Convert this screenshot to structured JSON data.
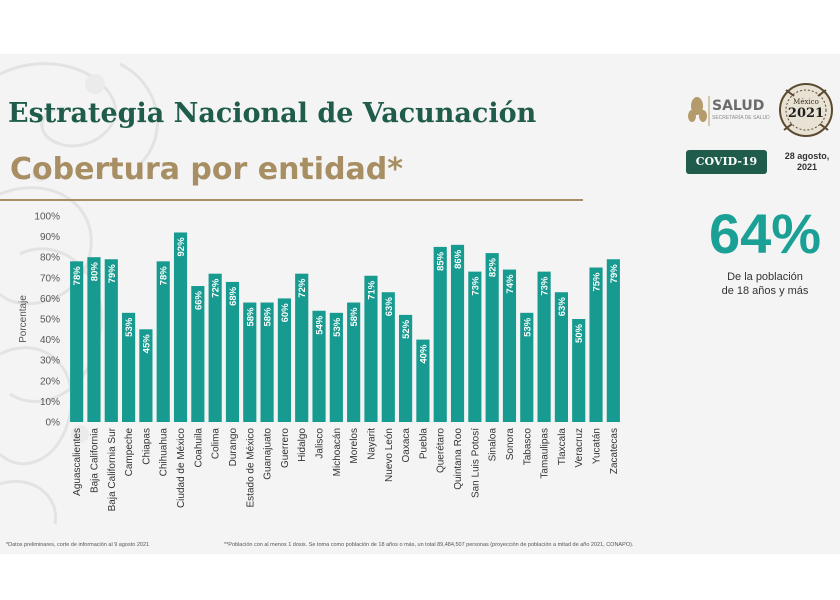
{
  "header": {
    "title": "Estrategia Nacional de Vacunación",
    "subtitle": "Cobertura por entidad*"
  },
  "branding": {
    "salud_name": "SALUD",
    "salud_sub": "SECRETARÍA DE SALUD",
    "seal_year": "2021",
    "seal_country": "México",
    "covid_badge": "COVID-19",
    "date_line1": "28 agosto,",
    "date_line2": "2021"
  },
  "summary": {
    "value": "64%",
    "caption_line1": "De la población",
    "caption_line2": "de 18 años y más"
  },
  "footnotes": {
    "left": "*Datos preliminares, corte de información al 9 agosto 2021",
    "right": "**Población con al menos 1 dosis. Se toma como población de 18 años o más, un total 89,484,507 personas (proyección de población a mitad de año 2021, CONAPO)."
  },
  "colors": {
    "bar": "#179a8f",
    "title": "#1f5c4b",
    "accent": "#a88e63",
    "big_value": "#1aa095"
  },
  "chart_data": {
    "type": "bar",
    "title": "",
    "xlabel": "",
    "ylabel": "Porcentaje",
    "ylim": [
      0,
      100
    ],
    "yticks": [
      "0%",
      "10%",
      "20%",
      "30%",
      "40%",
      "50%",
      "60%",
      "70%",
      "80%",
      "90%",
      "100%"
    ],
    "grid": false,
    "categories": [
      "Aguascalientes",
      "Baja California",
      "Baja California Sur",
      "Campeche",
      "Chiapas",
      "Chihuahua",
      "Ciudad de México",
      "Coahuila",
      "Colima",
      "Durango",
      "Estado de México",
      "Guanajuato",
      "Guerrero",
      "Hidalgo",
      "Jalisco",
      "Michoacán",
      "Morelos",
      "Nayarit",
      "Nuevo León",
      "Oaxaca",
      "Puebla",
      "Querétaro",
      "Quintana Roo",
      "San Luis Potosí",
      "Sinaloa",
      "Sonora",
      "Tabasco",
      "Tamaulipas",
      "Tlaxcala",
      "Veracruz",
      "Yucatán",
      "Zacatecas"
    ],
    "values": [
      78,
      80,
      79,
      53,
      45,
      78,
      92,
      66,
      72,
      68,
      58,
      58,
      60,
      72,
      54,
      53,
      58,
      71,
      63,
      52,
      40,
      85,
      86,
      73,
      82,
      74,
      53,
      73,
      63,
      50,
      75,
      79
    ],
    "labels": [
      "78%",
      "80%",
      "79%",
      "53%",
      "45%",
      "78%",
      "92%",
      "66%",
      "72%",
      "68%",
      "58%",
      "58%",
      "60%",
      "72%",
      "54%",
      "53%",
      "58%",
      "71%",
      "63%",
      "52%",
      "40%",
      "85%",
      "86%",
      "73%",
      "82%",
      "74%",
      "53%",
      "73%",
      "63%",
      "50%",
      "75%",
      "79%"
    ]
  }
}
